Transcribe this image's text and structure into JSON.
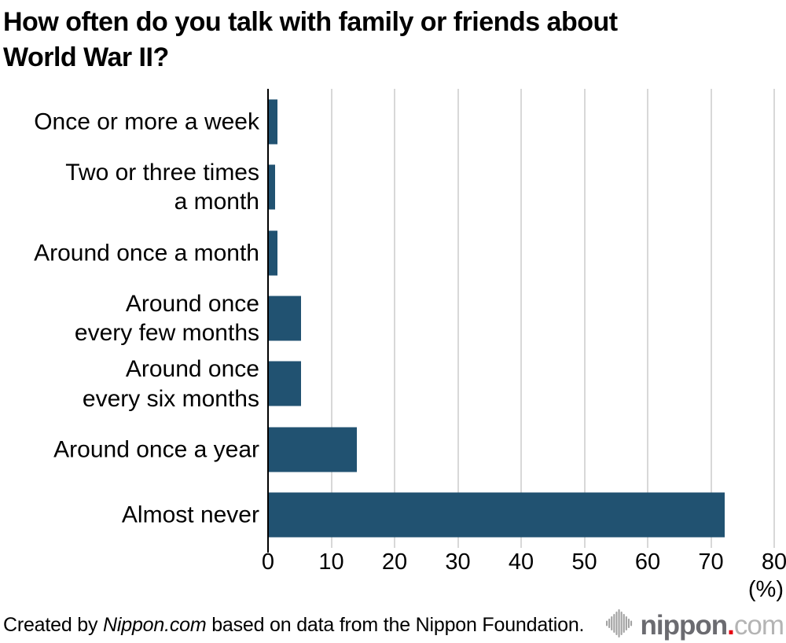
{
  "title": "How often do you talk with family or friends about\nWorld War II?",
  "chart_data": {
    "type": "bar",
    "orientation": "horizontal",
    "title": "How often do you talk with family or friends about World War II?",
    "categories": [
      "Once or more a week",
      "Two or three times\na month",
      "Around once a month",
      "Around once\nevery few months",
      "Around once\nevery six months",
      "Around once a year",
      "Almost never"
    ],
    "values": [
      1.4,
      1.0,
      1.4,
      5.1,
      5.1,
      13.9,
      72.1
    ],
    "unit": "%",
    "xlabel": "(%)",
    "ylabel": "",
    "xlim": [
      0,
      80
    ],
    "x_ticks": [
      0,
      10,
      20,
      30,
      40,
      50,
      60,
      70,
      80
    ],
    "grid": true,
    "legend": "none",
    "bar_color": "#215271",
    "gridline_color": "#d8d8d8",
    "axis_color": "#000000"
  },
  "footer": {
    "credit_prefix": "Created by ",
    "credit_source": "Nippon.com",
    "credit_suffix": " based on data from the Nippon Foundation.",
    "logo": {
      "icon": "soundwave-icon",
      "name": "nippon",
      "dot": ".",
      "tld": "com",
      "name_color": "#6b6b70",
      "dot_color": "#e60012",
      "tld_color": "#b4b4b4",
      "icon_color": "#a2a2a2"
    }
  }
}
